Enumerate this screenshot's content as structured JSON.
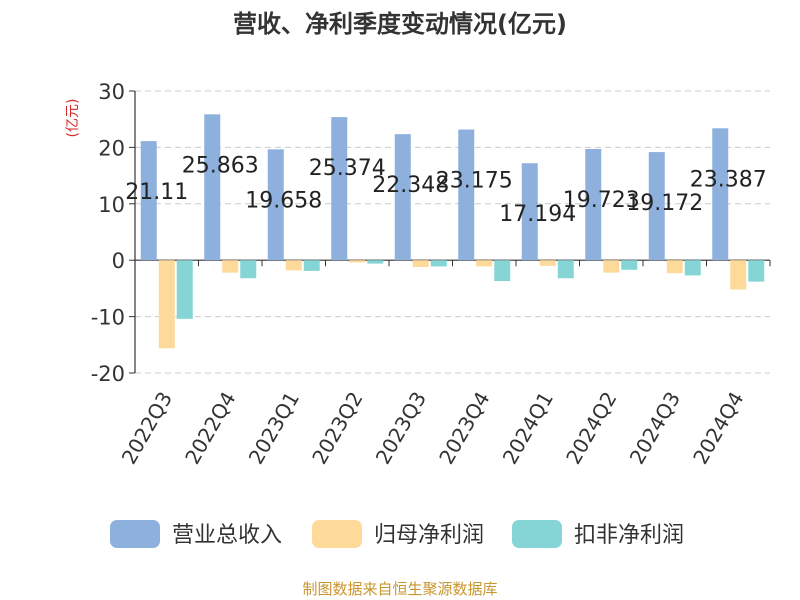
{
  "chart_data": {
    "type": "bar",
    "title": "营收、净利季度变动情况(亿元)",
    "ylabel": "(亿元)",
    "ylim": [
      -20,
      30
    ],
    "yticks": [
      30,
      20,
      10,
      0,
      -10,
      -20
    ],
    "grid": true,
    "legend_position": "bottom",
    "categories": [
      "2022Q3",
      "2022Q4",
      "2023Q1",
      "2023Q2",
      "2023Q3",
      "2023Q4",
      "2024Q1",
      "2024Q2",
      "2024Q3",
      "2024Q4"
    ],
    "series": [
      {
        "name": "营业总收入",
        "color": "#8eb0dd",
        "values": [
          21.11,
          25.863,
          19.658,
          25.374,
          22.348,
          23.175,
          17.194,
          19.723,
          19.172,
          23.387
        ]
      },
      {
        "name": "归母净利润",
        "color": "#fdd99a",
        "values": [
          -15.6,
          -2.2,
          -1.8,
          -0.4,
          -1.2,
          -1.1,
          -1.0,
          -2.2,
          -2.3,
          -5.2
        ]
      },
      {
        "name": "扣非净利润",
        "color": "#86d5d6",
        "values": [
          -10.4,
          -3.2,
          -1.9,
          -0.6,
          -1.1,
          -3.7,
          -3.2,
          -1.7,
          -2.7,
          -3.8
        ]
      }
    ],
    "data_labels": [
      "21.11",
      "25.863",
      "19.658",
      "25.374",
      "22.348",
      "23.175",
      "17.194",
      "19.723",
      "19.172",
      "23.387"
    ],
    "source": "制图数据来自恒生聚源数据库"
  }
}
